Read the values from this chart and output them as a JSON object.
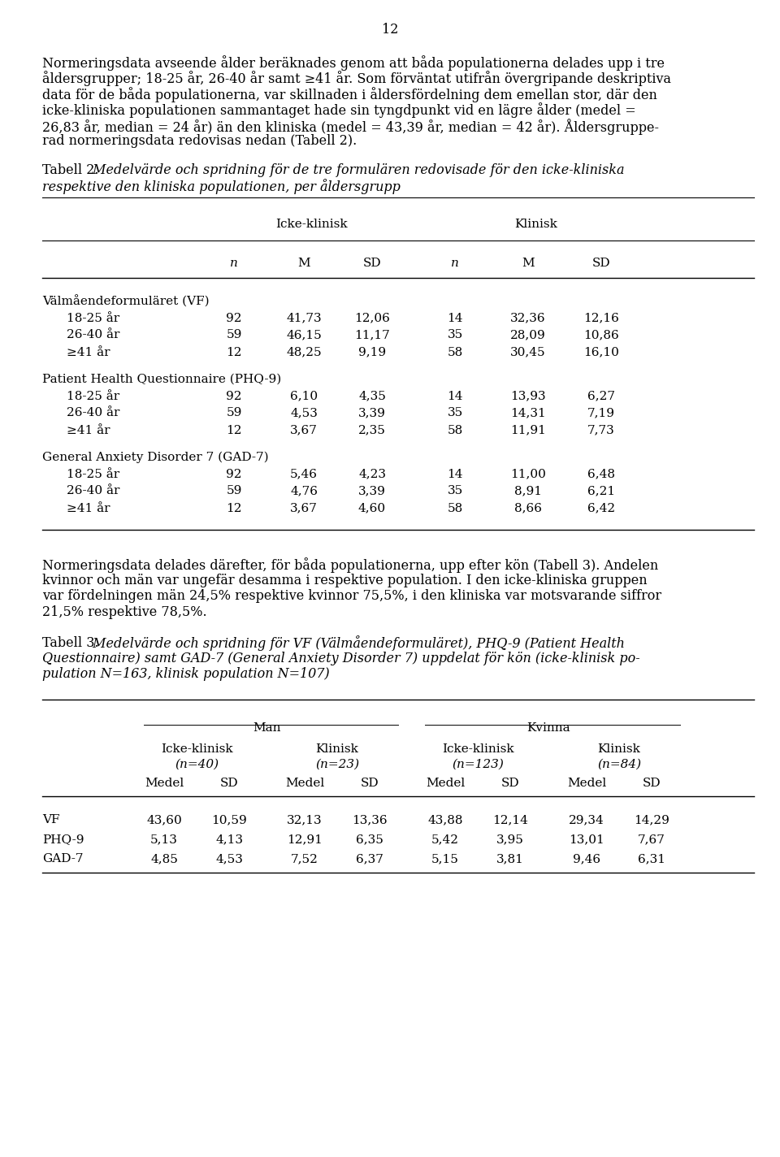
{
  "page_number": "12",
  "body_text_1_lines": [
    "Normeringsdata avseende ålder beräknades genom att båda populationerna delades upp i tre",
    "åldersgrupper; 18-25 år, 26-40 år samt ≥41 år. Som förväntat utifrån övergripande deskriptiva",
    "data för de båda populationerna, var skillnaden i åldersfördelning dem emellan stor, där den",
    "icke-kliniska populationen sammantaget hade sin tyngdpunkt vid en lägre ålder (medel =",
    "26,83 år, median = 24 år) än den kliniska (medel = 43,39 år, median = 42 år). Åldersgruppe-",
    "rad normeringsdata redovisas nedan (Tabell 2)."
  ],
  "table2_label_plain": "Tabell 2.",
  "table2_label_italic_line1": " Medelvärde och spridning för de tre formulären redovisade för den icke-kliniska",
  "table2_label_italic_line2": "respektive den kliniska populationen, per åldersgrupp",
  "table2_sections": [
    {
      "name": "Välmåendeformuläret (VF)",
      "rows": [
        [
          "18-25 år",
          "92",
          "41,73",
          "12,06",
          "14",
          "32,36",
          "12,16"
        ],
        [
          "26-40 år",
          "59",
          "46,15",
          "11,17",
          "35",
          "28,09",
          "10,86"
        ],
        [
          "≥41 år",
          "12",
          "48,25",
          "9,19",
          "58",
          "30,45",
          "16,10"
        ]
      ]
    },
    {
      "name": "Patient Health Questionnaire (PHQ-9)",
      "rows": [
        [
          "18-25 år",
          "92",
          "6,10",
          "4,35",
          "14",
          "13,93",
          "6,27"
        ],
        [
          "26-40 år",
          "59",
          "4,53",
          "3,39",
          "35",
          "14,31",
          "7,19"
        ],
        [
          "≥41 år",
          "12",
          "3,67",
          "2,35",
          "58",
          "11,91",
          "7,73"
        ]
      ]
    },
    {
      "name": "General Anxiety Disorder 7 (GAD-7)",
      "rows": [
        [
          "18-25 år",
          "92",
          "5,46",
          "4,23",
          "14",
          "11,00",
          "6,48"
        ],
        [
          "26-40 år",
          "59",
          "4,76",
          "3,39",
          "35",
          "8,91",
          "6,21"
        ],
        [
          "≥41 år",
          "12",
          "3,67",
          "4,60",
          "58",
          "8,66",
          "6,42"
        ]
      ]
    }
  ],
  "body_text_2_lines": [
    "Normeringsdata delades därefter, för båda populationerna, upp efter kön (Tabell 3). Andelen",
    "kvinnor och män var ungefär desamma i respektive population. I den icke-kliniska gruppen",
    "var fördelningen män 24,5% respektive kvinnor 75,5%, i den kliniska var motsvarande siffror",
    "21,5% respektive 78,5%."
  ],
  "table3_label_plain": "Tabell 3.",
  "table3_label_italic_lines": [
    " Medelvärde och spridning för VF (Välmåendeformuläret), PHQ-9 (Patient Health",
    "Questionnaire) samt GAD-7 (General Anxiety Disorder 7) uppdelat för kön (icke-klinisk po-",
    "pulation N=163, klinisk population N=107)"
  ],
  "table3_rows": [
    [
      "VF",
      "43,60",
      "10,59",
      "32,13",
      "13,36",
      "43,88",
      "12,14",
      "29,34",
      "14,29"
    ],
    [
      "PHQ-9",
      "5,13",
      "4,13",
      "12,91",
      "6,35",
      "5,42",
      "3,95",
      "13,01",
      "7,67"
    ],
    [
      "GAD-7",
      "4,85",
      "4,53",
      "7,52",
      "6,37",
      "5,15",
      "3,81",
      "9,46",
      "6,31"
    ]
  ],
  "bg_color": "#ffffff",
  "text_color": "#000000"
}
